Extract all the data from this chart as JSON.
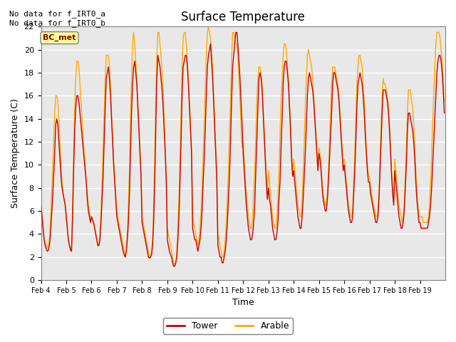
{
  "title": "Surface Temperature",
  "ylabel": "Surface Temperature (C)",
  "xlabel": "Time",
  "ylim": [
    0,
    22
  ],
  "bg_color": "#e8e8e8",
  "tower_color": "#cc0000",
  "arable_color": "#ffaa00",
  "annotation_line1": "No data for f_IRT0_a",
  "annotation_line2": "No data for f_IRT0_b",
  "bc_met_label": "BC_met",
  "bc_met_color": "#8b0000",
  "bc_met_bg": "#ffff99",
  "legend_tower": "Tower",
  "legend_arable": "Arable",
  "x_tick_labels": [
    "Feb 4",
    "Feb 5",
    "Feb 6",
    "Feb 7",
    "Feb 8",
    "Feb 9",
    "Feb 10",
    "Feb 11",
    "Feb 12",
    "Feb 13",
    "Feb 14",
    "Feb 15",
    "Feb 16",
    "Feb 17",
    "Feb 18",
    "Feb 19"
  ],
  "n_days": 16,
  "pts_per_day": 24,
  "tower_data": [
    6.5,
    5.5,
    4.5,
    3.5,
    3.0,
    2.7,
    2.5,
    2.6,
    3.0,
    4.0,
    5.5,
    7.0,
    9.0,
    11.0,
    13.5,
    14.0,
    13.5,
    12.0,
    10.5,
    9.0,
    8.0,
    7.5,
    7.0,
    6.5,
    5.5,
    4.5,
    3.5,
    3.0,
    2.6,
    2.5,
    5.5,
    9.5,
    13.0,
    15.0,
    16.0,
    16.0,
    15.5,
    14.5,
    13.5,
    12.5,
    11.5,
    10.5,
    9.5,
    8.5,
    7.0,
    6.0,
    5.5,
    5.0,
    5.5,
    5.2,
    5.0,
    4.5,
    4.0,
    3.5,
    3.0,
    3.0,
    3.5,
    5.0,
    7.0,
    9.0,
    12.0,
    15.0,
    17.5,
    18.0,
    18.5,
    17.5,
    16.0,
    14.0,
    12.0,
    10.0,
    8.5,
    7.0,
    5.5,
    5.0,
    4.5,
    4.0,
    3.5,
    3.0,
    2.5,
    2.2,
    2.0,
    2.5,
    3.5,
    5.0,
    7.5,
    11.0,
    14.5,
    17.0,
    18.5,
    19.0,
    18.0,
    17.0,
    15.0,
    13.0,
    11.0,
    9.0,
    5.0,
    4.5,
    4.0,
    3.5,
    3.0,
    2.5,
    2.0,
    1.9,
    2.0,
    2.2,
    3.0,
    5.0,
    8.5,
    13.0,
    17.5,
    19.5,
    19.0,
    18.5,
    17.5,
    16.5,
    15.0,
    13.0,
    11.0,
    8.5,
    3.5,
    3.0,
    2.5,
    2.2,
    2.0,
    1.5,
    1.2,
    1.2,
    1.5,
    2.0,
    3.5,
    5.5,
    8.5,
    12.0,
    16.0,
    18.5,
    19.0,
    19.5,
    19.5,
    18.5,
    17.0,
    15.0,
    13.0,
    11.0,
    4.5,
    4.0,
    3.5,
    3.5,
    3.0,
    2.5,
    3.0,
    3.5,
    4.5,
    6.0,
    8.5,
    10.5,
    13.0,
    16.0,
    18.5,
    19.5,
    20.0,
    20.5,
    19.0,
    17.5,
    15.5,
    13.0,
    11.0,
    8.5,
    3.0,
    2.5,
    2.0,
    2.0,
    1.5,
    1.5,
    2.0,
    2.5,
    3.5,
    5.0,
    7.0,
    9.0,
    12.0,
    15.5,
    18.5,
    19.5,
    20.5,
    21.5,
    21.5,
    20.5,
    19.0,
    17.5,
    15.5,
    13.5,
    11.0,
    9.5,
    8.0,
    6.5,
    5.5,
    4.5,
    4.0,
    3.5,
    3.5,
    4.0,
    5.0,
    6.5,
    9.5,
    12.0,
    15.0,
    17.5,
    18.0,
    17.5,
    16.5,
    14.5,
    12.5,
    10.5,
    8.5,
    7.0,
    8.0,
    7.0,
    6.5,
    5.5,
    4.5,
    4.0,
    3.5,
    3.5,
    4.0,
    5.0,
    7.0,
    8.5,
    11.5,
    14.0,
    17.0,
    18.5,
    19.0,
    19.0,
    18.0,
    17.0,
    15.0,
    13.0,
    10.5,
    9.0,
    9.5,
    8.5,
    7.5,
    6.5,
    5.5,
    5.0,
    4.5,
    4.5,
    5.5,
    7.0,
    9.0,
    11.0,
    13.5,
    16.0,
    17.5,
    18.0,
    17.5,
    17.0,
    16.5,
    15.5,
    14.0,
    12.5,
    11.0,
    9.5,
    11.0,
    10.5,
    9.5,
    8.0,
    7.0,
    6.5,
    6.0,
    6.0,
    7.0,
    8.5,
    10.5,
    12.5,
    14.5,
    17.0,
    18.0,
    18.0,
    17.5,
    17.0,
    16.5,
    15.5,
    14.0,
    12.5,
    11.0,
    9.5,
    10.0,
    9.0,
    8.0,
    7.0,
    6.0,
    5.5,
    5.0,
    5.0,
    5.5,
    7.5,
    9.5,
    12.0,
    15.0,
    17.0,
    17.5,
    18.0,
    17.5,
    17.0,
    16.0,
    14.5,
    12.5,
    11.0,
    9.5,
    8.5,
    8.5,
    7.5,
    7.0,
    6.5,
    6.0,
    5.5,
    5.0,
    5.0,
    5.5,
    7.0,
    9.5,
    12.0,
    14.5,
    16.5,
    16.5,
    16.5,
    16.0,
    15.5,
    14.5,
    13.0,
    11.0,
    9.0,
    7.5,
    6.5,
    9.5,
    8.5,
    7.5,
    6.5,
    5.5,
    5.0,
    4.5,
    4.5,
    5.0,
    6.0,
    8.0,
    10.0,
    13.0,
    14.5,
    14.5,
    14.0,
    13.5,
    13.0,
    12.0,
    10.5,
    8.5,
    7.0,
    6.0,
    5.0,
    5.0,
    4.5,
    4.5,
    4.5,
    4.5,
    4.5,
    4.5,
    4.5,
    5.0,
    5.5,
    6.5,
    8.0,
    10.0,
    12.0,
    14.0,
    16.0,
    18.0,
    19.0,
    19.5,
    19.5,
    19.0,
    18.0,
    16.5,
    14.5
  ],
  "arable_data": [
    6.5,
    5.5,
    4.5,
    3.5,
    3.2,
    3.0,
    2.8,
    3.0,
    3.5,
    5.0,
    7.0,
    9.5,
    12.0,
    14.5,
    16.0,
    16.0,
    15.5,
    14.0,
    12.0,
    10.0,
    8.5,
    7.5,
    7.0,
    6.5,
    5.5,
    4.5,
    3.5,
    3.0,
    2.8,
    2.5,
    6.5,
    11.0,
    15.0,
    17.5,
    19.0,
    19.0,
    18.5,
    17.0,
    15.5,
    14.0,
    12.5,
    11.0,
    10.0,
    8.5,
    7.5,
    6.5,
    6.0,
    5.5,
    5.5,
    5.2,
    5.0,
    4.5,
    4.0,
    3.5,
    3.0,
    3.2,
    4.0,
    6.0,
    8.5,
    11.5,
    14.5,
    17.5,
    19.5,
    19.5,
    19.5,
    18.5,
    17.0,
    14.5,
    12.5,
    10.5,
    9.0,
    7.5,
    6.0,
    5.5,
    5.0,
    4.5,
    4.0,
    3.5,
    3.0,
    2.5,
    2.0,
    2.5,
    4.0,
    6.5,
    9.5,
    14.0,
    17.5,
    20.5,
    21.5,
    20.5,
    19.0,
    17.5,
    15.5,
    13.5,
    11.5,
    9.5,
    5.5,
    5.0,
    4.5,
    4.0,
    3.5,
    3.0,
    2.5,
    2.0,
    2.0,
    2.5,
    3.5,
    6.5,
    10.5,
    15.5,
    19.5,
    21.5,
    21.5,
    20.5,
    19.5,
    18.0,
    16.5,
    14.0,
    11.5,
    9.0,
    4.5,
    4.0,
    3.5,
    3.0,
    2.5,
    2.0,
    1.5,
    1.3,
    1.5,
    2.5,
    4.5,
    7.0,
    10.5,
    14.5,
    18.5,
    21.0,
    21.5,
    21.5,
    20.5,
    19.0,
    17.5,
    15.5,
    13.5,
    11.5,
    5.5,
    5.0,
    4.5,
    4.0,
    3.5,
    3.0,
    3.5,
    4.5,
    6.0,
    8.0,
    10.5,
    13.5,
    16.5,
    19.5,
    21.5,
    22.0,
    21.5,
    21.0,
    20.0,
    18.5,
    16.0,
    14.0,
    11.5,
    9.0,
    4.0,
    3.5,
    3.0,
    2.5,
    2.0,
    2.0,
    2.5,
    3.5,
    5.0,
    7.0,
    9.5,
    12.5,
    15.5,
    19.0,
    21.5,
    21.5,
    21.0,
    20.5,
    20.5,
    19.5,
    17.5,
    15.5,
    13.5,
    11.5,
    12.0,
    10.5,
    9.0,
    7.5,
    6.5,
    5.5,
    5.0,
    4.5,
    4.5,
    5.5,
    7.5,
    9.5,
    12.5,
    15.5,
    17.5,
    18.5,
    18.5,
    18.0,
    17.0,
    15.0,
    13.0,
    11.0,
    9.0,
    7.5,
    9.5,
    8.5,
    7.5,
    6.5,
    5.5,
    5.0,
    4.5,
    4.5,
    5.5,
    7.0,
    9.5,
    12.5,
    15.5,
    17.5,
    19.5,
    20.5,
    20.5,
    20.0,
    18.5,
    17.5,
    15.5,
    13.5,
    11.0,
    9.5,
    10.5,
    9.5,
    8.5,
    7.5,
    6.5,
    6.0,
    5.5,
    5.5,
    7.0,
    9.5,
    12.0,
    15.0,
    17.5,
    19.5,
    20.0,
    19.5,
    19.0,
    18.5,
    17.5,
    16.0,
    14.5,
    13.0,
    11.5,
    10.0,
    11.5,
    11.0,
    10.0,
    8.5,
    7.5,
    7.0,
    6.5,
    6.5,
    7.5,
    9.5,
    12.0,
    14.5,
    17.0,
    18.5,
    18.5,
    18.5,
    18.0,
    17.5,
    17.0,
    16.0,
    14.5,
    13.0,
    11.5,
    10.0,
    10.5,
    9.5,
    8.5,
    7.5,
    6.5,
    6.0,
    5.5,
    5.5,
    6.0,
    8.5,
    11.0,
    14.0,
    17.0,
    18.5,
    19.5,
    19.5,
    19.0,
    18.5,
    17.0,
    15.5,
    13.5,
    11.5,
    10.0,
    9.0,
    9.0,
    8.0,
    7.5,
    7.0,
    6.5,
    6.0,
    5.5,
    5.5,
    6.0,
    7.5,
    10.5,
    13.5,
    16.0,
    17.5,
    17.0,
    17.0,
    16.5,
    16.0,
    15.0,
    13.5,
    11.5,
    9.5,
    8.0,
    7.0,
    10.5,
    9.5,
    8.5,
    7.5,
    6.5,
    6.0,
    5.5,
    5.0,
    5.5,
    6.5,
    9.0,
    11.5,
    14.5,
    16.5,
    16.5,
    16.5,
    15.5,
    15.0,
    13.5,
    11.5,
    9.5,
    7.5,
    6.5,
    5.5,
    5.5,
    5.5,
    5.5,
    5.0,
    5.0,
    5.0,
    5.0,
    5.0,
    5.5,
    6.5,
    8.5,
    11.0,
    13.5,
    16.0,
    18.5,
    20.5,
    21.5,
    21.5,
    21.5,
    21.0,
    20.0,
    19.0,
    17.5,
    15.5
  ]
}
